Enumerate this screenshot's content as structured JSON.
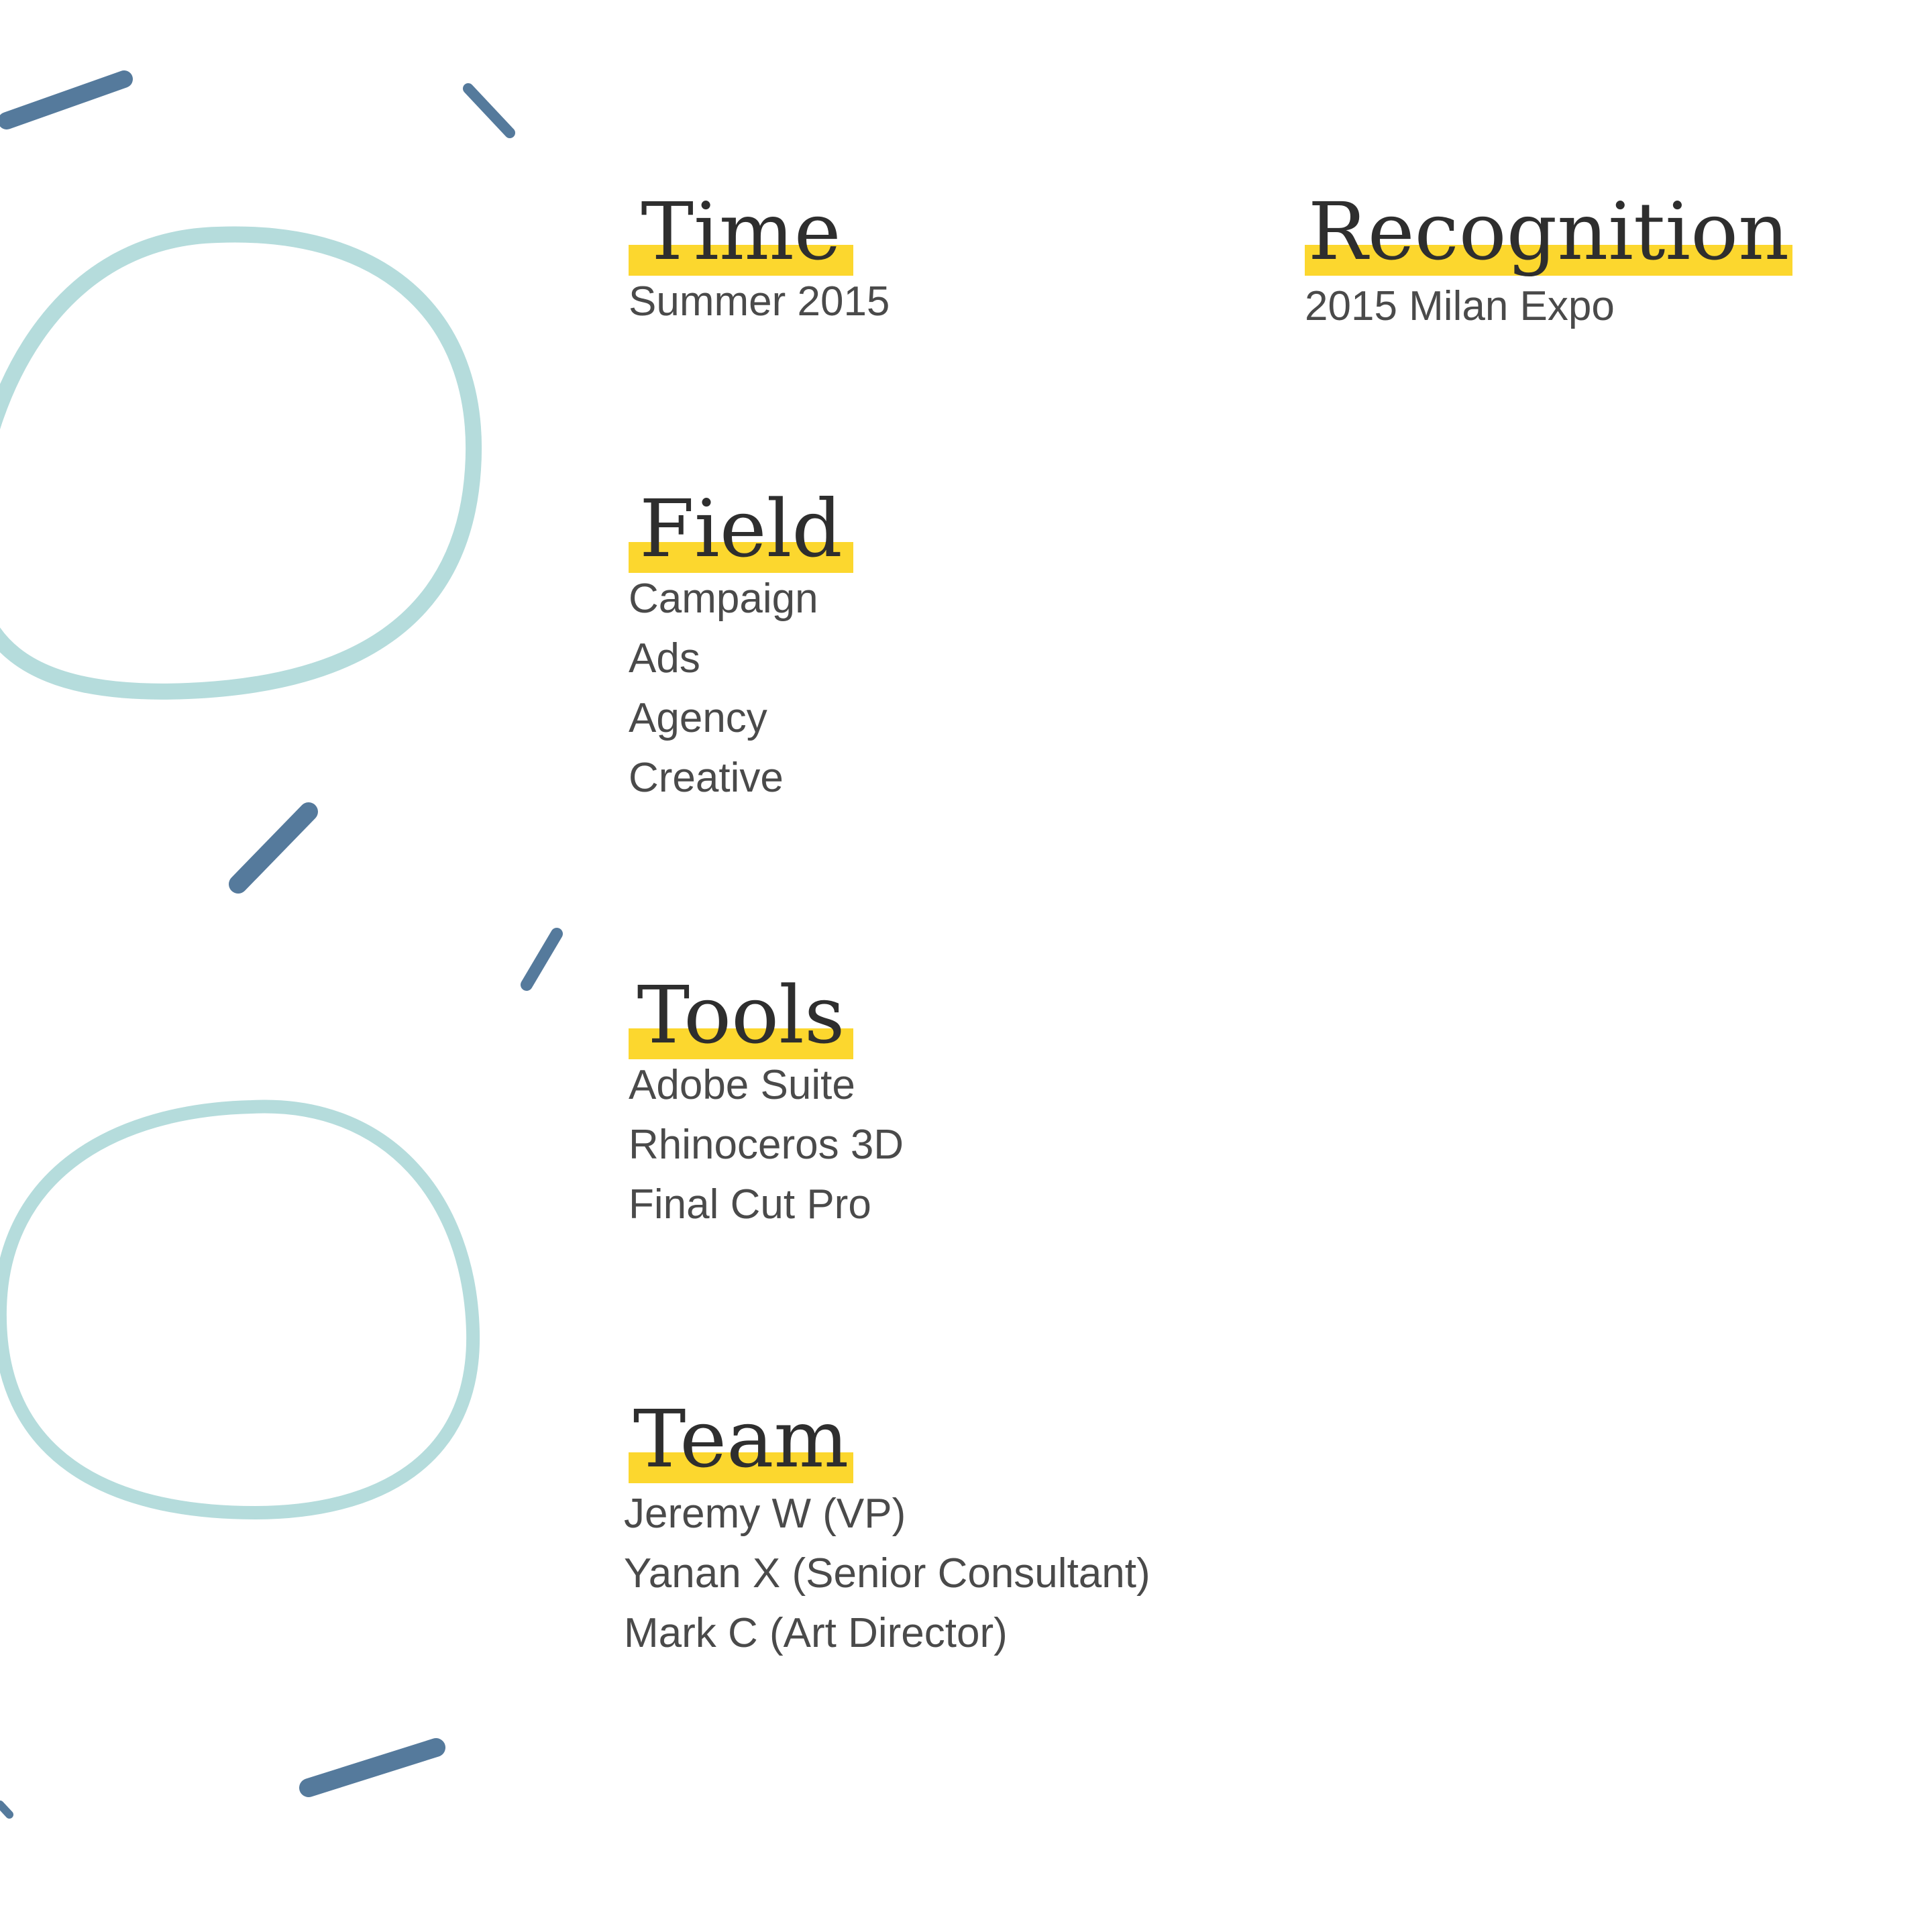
{
  "colors": {
    "highlight": "#fcd72e",
    "heading_text": "#2e2e2e",
    "body_text": "#4a4a4a",
    "ring": "#b5dcdc",
    "stroke": "#557a9c"
  },
  "sections": {
    "time": {
      "title": "Time",
      "items": [
        "Summer 2015"
      ]
    },
    "recognition": {
      "title": "Recognition",
      "items": [
        "2015 Milan Expo"
      ]
    },
    "field": {
      "title": "Field",
      "items": [
        "Campaign",
        "Ads",
        "Agency",
        "Creative"
      ]
    },
    "tools": {
      "title": "Tools",
      "items": [
        "Adobe Suite",
        "Rhinoceros 3D",
        "Final Cut Pro"
      ]
    },
    "team": {
      "title": "Team",
      "items": [
        "Jeremy W (VP)",
        "Yanan X (Senior Consultant)",
        "Mark C (Art Director)"
      ]
    }
  }
}
